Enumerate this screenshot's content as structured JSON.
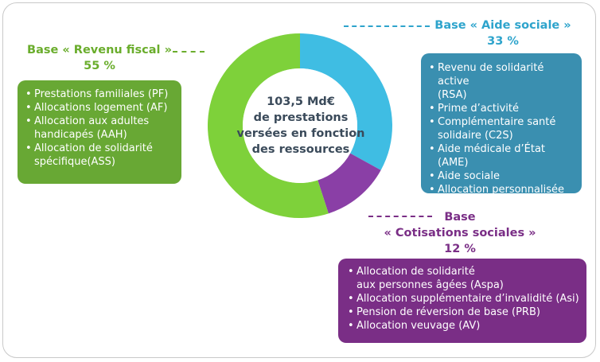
{
  "chart_data": {
    "type": "pie",
    "center_text": [
      "103,5 Md€",
      "de prestations",
      "versées en fonction",
      "des ressources"
    ],
    "series": [
      {
        "name_lines": [
          "Base « Aide sociale »"
        ],
        "value_label": "33 %",
        "value": 33,
        "color": "#3fbde3",
        "items": [
          "Revenu de solidarité active\n(RSA)",
          "Prime d’activité",
          "Complémentaire santé\nsolidaire (C2S)",
          "Aide médicale d’État (AME)",
          "Aide sociale",
          "Allocation personnalisée\nd’autonomie(APA)"
        ],
        "box_color": "#3a8fb0",
        "label_color": "#2ea4cc"
      },
      {
        "name_lines": [
          "Base",
          "« Cotisations sociales »"
        ],
        "value_label": "12 %",
        "value": 12,
        "color": "#8a3fa6",
        "items": [
          "Allocation de solidarité\naux personnes âgées (Aspa)",
          "Allocation supplémentaire d’invalidité (Asi)",
          "Pension de réversion de base (PRB)",
          "Allocation veuvage (AV)"
        ],
        "box_color": "#7a2e86",
        "label_color": "#7a2e86"
      },
      {
        "name_lines": [
          "Base « Revenu fiscal »"
        ],
        "value_label": "55 %",
        "value": 55,
        "color": "#7ed13a",
        "items": [
          "Prestations familiales (PF)",
          "Allocations logement (AF)",
          "Allocation aux adultes\nhandicapés (AAH)",
          "Allocation de solidarité\nspécifique(ASS)"
        ],
        "box_color": "#68a834",
        "label_color": "#6aad2c"
      }
    ]
  }
}
